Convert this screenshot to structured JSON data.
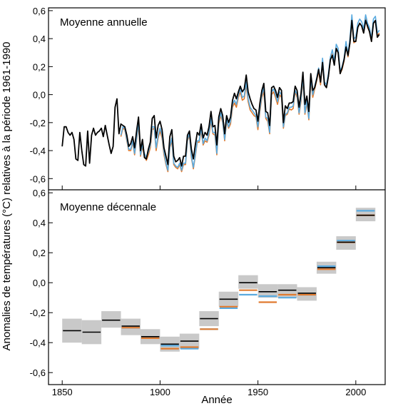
{
  "ylabel": "Anomalies de températures (°C) relatives à la période 1961-1990",
  "xlabel": "Année",
  "chart_data": [
    {
      "type": "line",
      "title": "Moyenne annuelle",
      "ylim": [
        -0.68,
        0.62
      ],
      "xlim": [
        1843,
        2015
      ],
      "yticks": [
        "0,6",
        "0,4",
        "0,2",
        "0,0",
        "-0,2",
        "-0,4",
        "-0,6"
      ],
      "ytick_values": [
        0.6,
        0.4,
        0.2,
        0.0,
        -0.2,
        -0.4,
        -0.6
      ],
      "series": [
        {
          "color": "#000000",
          "x": [
            1850,
            1851,
            1852,
            1853,
            1854,
            1855,
            1856,
            1857,
            1858,
            1859,
            1860,
            1861,
            1862,
            1863,
            1864,
            1865,
            1866,
            1867,
            1868,
            1869,
            1870,
            1871,
            1872,
            1873,
            1874,
            1875,
            1876,
            1877,
            1878,
            1879,
            1880,
            1881,
            1882,
            1883,
            1884,
            1885,
            1886,
            1887,
            1888,
            1889,
            1890,
            1891,
            1892,
            1893,
            1894,
            1895,
            1896,
            1897,
            1898,
            1899,
            1900,
            1901,
            1902,
            1903,
            1904,
            1905,
            1906,
            1907,
            1908,
            1909,
            1910,
            1911,
            1912,
            1913,
            1914,
            1915,
            1916,
            1917,
            1918,
            1919,
            1920,
            1921,
            1922,
            1923,
            1924,
            1925,
            1926,
            1927,
            1928,
            1929,
            1930,
            1931,
            1932,
            1933,
            1934,
            1935,
            1936,
            1937,
            1938,
            1939,
            1940,
            1941,
            1942,
            1943,
            1944,
            1945,
            1946,
            1947,
            1948,
            1949,
            1950,
            1951,
            1952,
            1953,
            1954,
            1955,
            1956,
            1957,
            1958,
            1959,
            1960,
            1961,
            1962,
            1963,
            1964,
            1965,
            1966,
            1967,
            1968,
            1969,
            1970,
            1971,
            1972,
            1973,
            1974,
            1975,
            1976,
            1977,
            1978,
            1979,
            1980,
            1981,
            1982,
            1983,
            1984,
            1985,
            1986,
            1987,
            1988,
            1989,
            1990,
            1991,
            1992,
            1993,
            1994,
            1995,
            1996,
            1997,
            1998,
            1999,
            2000,
            2001,
            2002,
            2003,
            2004,
            2005,
            2006,
            2007,
            2008,
            2009,
            2010,
            2011,
            2012
          ],
          "y": [
            -0.37,
            -0.23,
            -0.23,
            -0.27,
            -0.29,
            -0.27,
            -0.32,
            -0.46,
            -0.47,
            -0.27,
            -0.4,
            -0.5,
            -0.51,
            -0.26,
            -0.49,
            -0.29,
            -0.24,
            -0.29,
            -0.27,
            -0.26,
            -0.24,
            -0.3,
            -0.22,
            -0.29,
            -0.36,
            -0.42,
            -0.37,
            -0.09,
            -0.03,
            -0.28,
            -0.21,
            -0.22,
            -0.23,
            -0.29,
            -0.37,
            -0.35,
            -0.3,
            -0.38,
            -0.26,
            -0.16,
            -0.4,
            -0.32,
            -0.45,
            -0.46,
            -0.39,
            -0.34,
            -0.17,
            -0.15,
            -0.31,
            -0.22,
            -0.19,
            -0.25,
            -0.38,
            -0.44,
            -0.5,
            -0.3,
            -0.25,
            -0.44,
            -0.48,
            -0.47,
            -0.45,
            -0.51,
            -0.44,
            -0.44,
            -0.29,
            -0.26,
            -0.39,
            -0.46,
            -0.36,
            -0.27,
            -0.29,
            -0.21,
            -0.31,
            -0.27,
            -0.29,
            -0.23,
            -0.12,
            -0.23,
            -0.22,
            -0.36,
            -0.16,
            -0.1,
            -0.15,
            -0.28,
            -0.15,
            -0.2,
            -0.16,
            -0.04,
            0.01,
            -0.03,
            0.02,
            0.06,
            0.02,
            0.04,
            0.14,
            0.02,
            -0.03,
            -0.07,
            -0.1,
            -0.11,
            -0.19,
            -0.06,
            0.03,
            0.08,
            -0.12,
            -0.13,
            -0.22,
            0.05,
            0.06,
            0.03,
            -0.02,
            0.05,
            0.03,
            -0.2,
            -0.08,
            -0.1,
            -0.06,
            -0.06,
            -0.05,
            0.06,
            0.03,
            -0.09,
            0.01,
            0.16,
            -0.07,
            -0.01,
            -0.12,
            0.15,
            0.03,
            0.05,
            0.11,
            0.18,
            0.09,
            0.23,
            0.07,
            0.05,
            0.13,
            0.25,
            0.28,
            0.21,
            0.33,
            0.3,
            0.15,
            0.19,
            0.25,
            0.34,
            0.28,
            0.37,
            0.53,
            0.38,
            0.38,
            0.48,
            0.51,
            0.49,
            0.44,
            0.53,
            0.49,
            0.45,
            0.38,
            0.51,
            0.53,
            0.41,
            0.43
          ]
        },
        {
          "color": "#5aaadf",
          "x": [
            1880,
            1881,
            1882,
            1883,
            1884,
            1885,
            1886,
            1887,
            1888,
            1889,
            1890,
            1891,
            1892,
            1893,
            1894,
            1895,
            1896,
            1897,
            1898,
            1899,
            1900,
            1901,
            1902,
            1903,
            1904,
            1905,
            1906,
            1907,
            1908,
            1909,
            1910,
            1911,
            1912,
            1913,
            1914,
            1915,
            1916,
            1917,
            1918,
            1919,
            1920,
            1921,
            1922,
            1923,
            1924,
            1925,
            1926,
            1927,
            1928,
            1929,
            1930,
            1931,
            1932,
            1933,
            1934,
            1935,
            1936,
            1937,
            1938,
            1939,
            1940,
            1941,
            1942,
            1943,
            1944,
            1945,
            1946,
            1947,
            1948,
            1949,
            1950,
            1951,
            1952,
            1953,
            1954,
            1955,
            1956,
            1957,
            1958,
            1959,
            1960,
            1961,
            1962,
            1963,
            1964,
            1965,
            1966,
            1967,
            1968,
            1969,
            1970,
            1971,
            1972,
            1973,
            1974,
            1975,
            1976,
            1977,
            1978,
            1979,
            1980,
            1981,
            1982,
            1983,
            1984,
            1985,
            1986,
            1987,
            1988,
            1989,
            1990,
            1991,
            1992,
            1993,
            1994,
            1995,
            1996,
            1997,
            1998,
            1999,
            2000,
            2001,
            2002,
            2003,
            2004,
            2005,
            2006,
            2007,
            2008,
            2009,
            2010,
            2011,
            2012
          ],
          "y": [
            -0.29,
            -0.23,
            -0.24,
            -0.32,
            -0.39,
            -0.39,
            -0.33,
            -0.42,
            -0.31,
            -0.2,
            -0.43,
            -0.36,
            -0.42,
            -0.45,
            -0.41,
            -0.36,
            -0.23,
            -0.23,
            -0.38,
            -0.29,
            -0.24,
            -0.29,
            -0.41,
            -0.49,
            -0.54,
            -0.37,
            -0.31,
            -0.49,
            -0.51,
            -0.52,
            -0.49,
            -0.54,
            -0.49,
            -0.49,
            -0.32,
            -0.28,
            -0.44,
            -0.52,
            -0.43,
            -0.33,
            -0.33,
            -0.24,
            -0.35,
            -0.31,
            -0.33,
            -0.27,
            -0.17,
            -0.27,
            -0.27,
            -0.42,
            -0.19,
            -0.13,
            -0.19,
            -0.32,
            -0.18,
            -0.23,
            -0.19,
            -0.07,
            -0.04,
            -0.07,
            0.0,
            0.04,
            -0.02,
            -0.01,
            0.09,
            -0.03,
            -0.09,
            -0.11,
            -0.13,
            -0.15,
            -0.23,
            -0.1,
            0.0,
            0.05,
            -0.16,
            -0.17,
            -0.27,
            0.02,
            0.04,
            0.0,
            -0.05,
            0.02,
            0.0,
            -0.23,
            -0.14,
            -0.13,
            -0.09,
            -0.09,
            -0.08,
            0.03,
            0.0,
            -0.13,
            -0.03,
            0.13,
            -0.13,
            -0.04,
            -0.17,
            0.12,
            0.0,
            0.06,
            0.12,
            0.19,
            0.09,
            0.26,
            0.09,
            0.07,
            0.15,
            0.27,
            0.32,
            0.24,
            0.36,
            0.33,
            0.17,
            0.2,
            0.26,
            0.38,
            0.29,
            0.4,
            0.57,
            0.4,
            0.41,
            0.51,
            0.54,
            0.52,
            0.47,
            0.57,
            0.51,
            0.48,
            0.4,
            0.54,
            0.56,
            0.44,
            0.46
          ]
        },
        {
          "color": "#e07b30",
          "x": [
            1880,
            1881,
            1882,
            1883,
            1884,
            1885,
            1886,
            1887,
            1888,
            1889,
            1890,
            1891,
            1892,
            1893,
            1894,
            1895,
            1896,
            1897,
            1898,
            1899,
            1900,
            1901,
            1902,
            1903,
            1904,
            1905,
            1906,
            1907,
            1908,
            1909,
            1910,
            1911,
            1912,
            1913,
            1914,
            1915,
            1916,
            1917,
            1918,
            1919,
            1920,
            1921,
            1922,
            1923,
            1924,
            1925,
            1926,
            1927,
            1928,
            1929,
            1930,
            1931,
            1932,
            1933,
            1934,
            1935,
            1936,
            1937,
            1938,
            1939,
            1940,
            1941,
            1942,
            1943,
            1944,
            1945,
            1946,
            1947,
            1948,
            1949,
            1950,
            1951,
            1952,
            1953,
            1954,
            1955,
            1956,
            1957,
            1958,
            1959,
            1960,
            1961,
            1962,
            1963,
            1964,
            1965,
            1966,
            1967,
            1968,
            1969,
            1970,
            1971,
            1972,
            1973,
            1974,
            1975,
            1976,
            1977,
            1978,
            1979,
            1980,
            1981,
            1982,
            1983,
            1984,
            1985,
            1986,
            1987,
            1988,
            1989,
            1990,
            1991,
            1992,
            1993,
            1994,
            1995,
            1996,
            1997,
            1998,
            1999,
            2000,
            2001,
            2002,
            2003,
            2004,
            2005,
            2006,
            2007,
            2008,
            2009,
            2010,
            2011,
            2012
          ],
          "y": [
            -0.3,
            -0.24,
            -0.25,
            -0.33,
            -0.4,
            -0.4,
            -0.34,
            -0.43,
            -0.32,
            -0.22,
            -0.44,
            -0.37,
            -0.44,
            -0.47,
            -0.43,
            -0.38,
            -0.25,
            -0.24,
            -0.4,
            -0.31,
            -0.26,
            -0.31,
            -0.43,
            -0.5,
            -0.55,
            -0.38,
            -0.33,
            -0.5,
            -0.52,
            -0.53,
            -0.5,
            -0.55,
            -0.5,
            -0.5,
            -0.33,
            -0.29,
            -0.45,
            -0.53,
            -0.44,
            -0.34,
            -0.34,
            -0.26,
            -0.36,
            -0.33,
            -0.34,
            -0.29,
            -0.19,
            -0.28,
            -0.29,
            -0.43,
            -0.21,
            -0.15,
            -0.2,
            -0.33,
            -0.19,
            -0.24,
            -0.21,
            -0.09,
            -0.06,
            -0.09,
            -0.02,
            0.02,
            -0.04,
            -0.03,
            0.07,
            -0.05,
            -0.11,
            -0.13,
            -0.15,
            -0.16,
            -0.25,
            -0.12,
            -0.02,
            0.02,
            -0.17,
            -0.19,
            -0.28,
            0.0,
            0.02,
            -0.02,
            -0.07,
            0.0,
            -0.02,
            -0.24,
            -0.15,
            -0.14,
            -0.1,
            -0.11,
            -0.1,
            0.02,
            -0.02,
            -0.14,
            -0.05,
            0.11,
            -0.14,
            -0.06,
            -0.18,
            0.1,
            -0.02,
            0.04,
            0.1,
            0.17,
            0.07,
            0.24,
            0.07,
            0.05,
            0.13,
            0.25,
            0.29,
            0.22,
            0.33,
            0.3,
            0.15,
            0.18,
            0.24,
            0.35,
            0.27,
            0.37,
            0.53,
            0.37,
            0.38,
            0.48,
            0.51,
            0.49,
            0.44,
            0.54,
            0.48,
            0.45,
            0.38,
            0.51,
            0.53,
            0.42,
            0.44
          ]
        }
      ]
    },
    {
      "type": "bar",
      "title": "Moyenne décennale",
      "ylim": [
        -0.68,
        0.62
      ],
      "xlim": [
        1843,
        2015
      ],
      "yticks": [
        "0,6",
        "0,4",
        "0,2",
        "0,0",
        "-0,2",
        "-0,4",
        "-0,6"
      ],
      "ytick_values": [
        0.6,
        0.4,
        0.2,
        0.0,
        -0.2,
        -0.4,
        -0.6
      ],
      "xticks": [
        "1850",
        "1900",
        "1950",
        "2000"
      ],
      "xtick_values": [
        1850,
        1900,
        1950,
        2000
      ],
      "decades": [
        1850,
        1860,
        1870,
        1880,
        1890,
        1900,
        1910,
        1920,
        1930,
        1940,
        1950,
        1960,
        1970,
        1980,
        1990,
        2000
      ],
      "uncertainty": [
        [
          -0.4,
          -0.24
        ],
        [
          -0.41,
          -0.25
        ],
        [
          -0.3,
          -0.19
        ],
        [
          -0.35,
          -0.24
        ],
        [
          -0.41,
          -0.31
        ],
        [
          -0.46,
          -0.36
        ],
        [
          -0.44,
          -0.34
        ],
        [
          -0.29,
          -0.19
        ],
        [
          -0.16,
          -0.06
        ],
        [
          -0.04,
          0.05
        ],
        [
          -0.1,
          -0.01
        ],
        [
          -0.1,
          -0.01
        ],
        [
          -0.12,
          -0.03
        ],
        [
          0.06,
          0.14
        ],
        [
          0.22,
          0.31
        ],
        [
          0.41,
          0.5
        ]
      ],
      "series": [
        {
          "color": "#000000",
          "values": [
            -0.32,
            -0.33,
            -0.25,
            -0.29,
            -0.36,
            -0.41,
            -0.39,
            -0.24,
            -0.11,
            0.0,
            -0.06,
            -0.05,
            -0.07,
            0.1,
            0.27,
            0.45
          ]
        },
        {
          "color": "#5aaadf",
          "values": [
            null,
            null,
            null,
            -0.3,
            -0.37,
            -0.42,
            -0.44,
            -0.31,
            -0.17,
            -0.08,
            -0.09,
            -0.1,
            -0.08,
            0.11,
            0.28,
            0.48
          ]
        },
        {
          "color": "#e07b30",
          "values": [
            null,
            null,
            null,
            -0.3,
            -0.37,
            -0.44,
            -0.43,
            -0.31,
            -0.16,
            -0.05,
            -0.13,
            -0.08,
            -0.08,
            0.09,
            0.27,
            0.45
          ]
        }
      ]
    }
  ]
}
